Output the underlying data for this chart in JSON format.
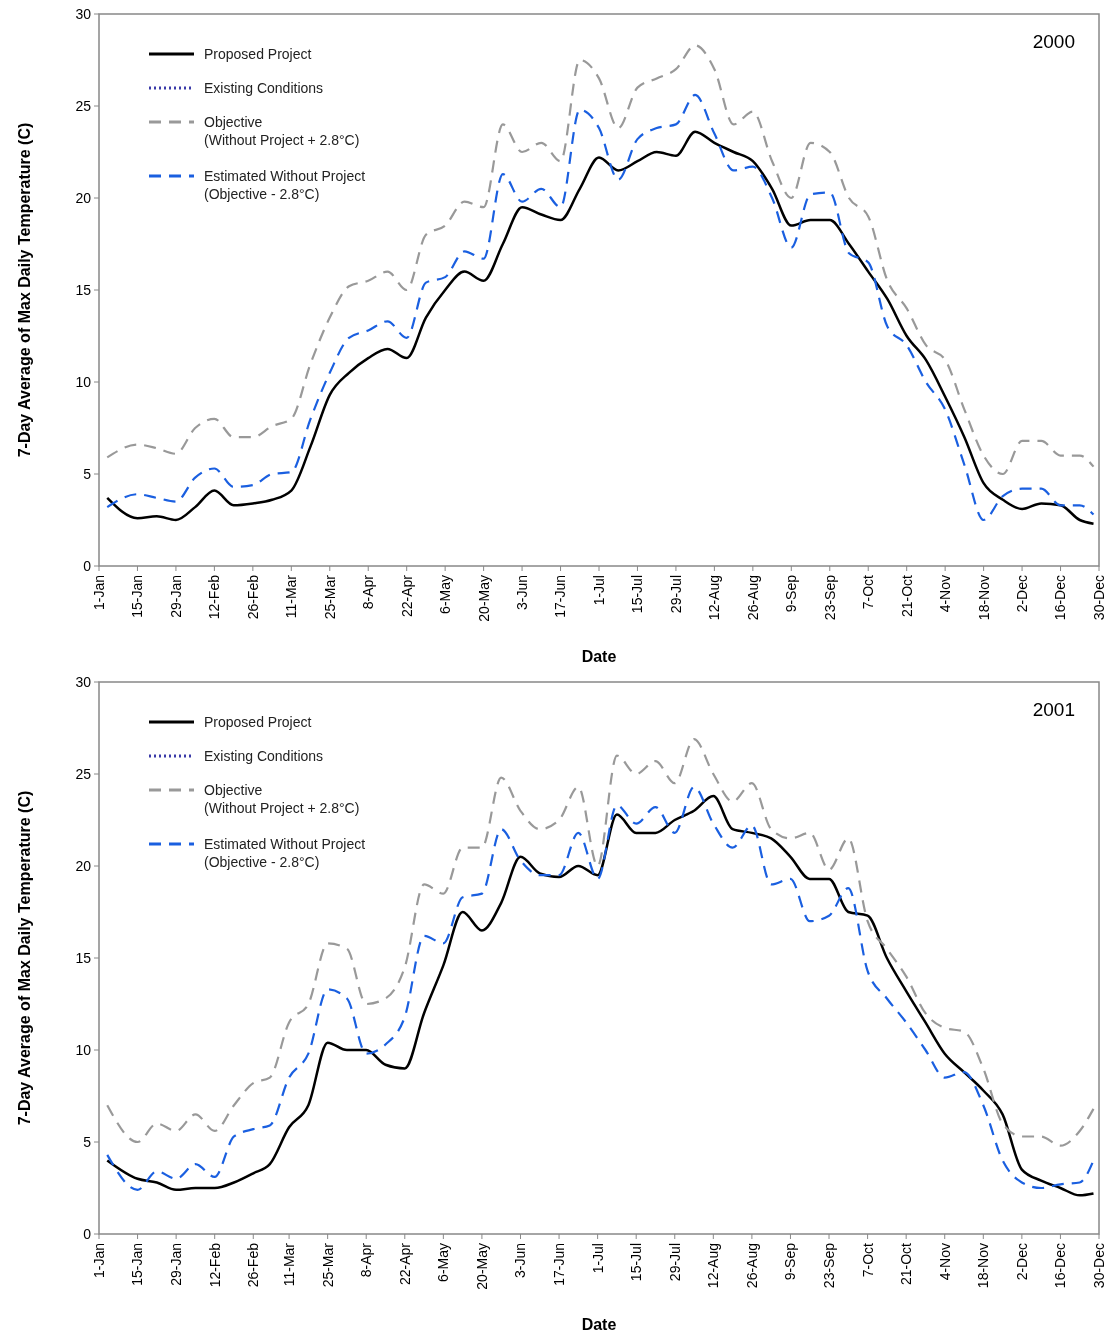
{
  "chart_data": [
    {
      "type": "line",
      "title": "2000",
      "xlabel": "Date",
      "ylabel": "7-Day Average of Max Daily Temperature (C)",
      "legend": "top left",
      "ylim": [
        0,
        30
      ],
      "yticks": [
        0,
        5,
        10,
        15,
        20,
        25,
        30
      ],
      "xlim": [
        "2000-01-01",
        "2000-12-30"
      ],
      "xticks": [
        {
          "value": "2000-01-01",
          "label": "1-Jan"
        },
        {
          "value": "2000-01-15",
          "label": "15-Jan"
        },
        {
          "value": "2000-01-29",
          "label": "29-Jan"
        },
        {
          "value": "2000-02-12",
          "label": "12-Feb"
        },
        {
          "value": "2000-02-26",
          "label": "26-Feb"
        },
        {
          "value": "2000-03-11",
          "label": "11-Mar"
        },
        {
          "value": "2000-03-25",
          "label": "25-Mar"
        },
        {
          "value": "2000-04-08",
          "label": "8-Apr"
        },
        {
          "value": "2000-04-22",
          "label": "22-Apr"
        },
        {
          "value": "2000-05-06",
          "label": "6-May"
        },
        {
          "value": "2000-05-20",
          "label": "20-May"
        },
        {
          "value": "2000-06-03",
          "label": "3-Jun"
        },
        {
          "value": "2000-06-17",
          "label": "17-Jun"
        },
        {
          "value": "2000-07-01",
          "label": "1-Jul"
        },
        {
          "value": "2000-07-15",
          "label": "15-Jul"
        },
        {
          "value": "2000-07-29",
          "label": "29-Jul"
        },
        {
          "value": "2000-08-12",
          "label": "12-Aug"
        },
        {
          "value": "2000-08-26",
          "label": "26-Aug"
        },
        {
          "value": "2000-09-09",
          "label": "9-Sep"
        },
        {
          "value": "2000-09-23",
          "label": "23-Sep"
        },
        {
          "value": "2000-10-07",
          "label": "7-Oct"
        },
        {
          "value": "2000-10-21",
          "label": "21-Oct"
        },
        {
          "value": "2000-11-04",
          "label": "4-Nov"
        },
        {
          "value": "2000-11-18",
          "label": "18-Nov"
        },
        {
          "value": "2000-12-02",
          "label": "2-Dec"
        },
        {
          "value": "2000-12-16",
          "label": "16-Dec"
        },
        {
          "value": "2000-12-30",
          "label": "30-Dec"
        }
      ],
      "x": [
        "2000-01-04",
        "2000-01-15",
        "2000-01-22",
        "2000-01-29",
        "2000-02-05",
        "2000-02-12",
        "2000-02-19",
        "2000-02-26",
        "2000-03-04",
        "2000-03-11",
        "2000-03-18",
        "2000-03-25",
        "2000-04-01",
        "2000-04-08",
        "2000-04-15",
        "2000-04-22",
        "2000-04-29",
        "2000-05-06",
        "2000-05-13",
        "2000-05-20",
        "2000-05-27",
        "2000-06-03",
        "2000-06-10",
        "2000-06-17",
        "2000-06-24",
        "2000-07-01",
        "2000-07-08",
        "2000-07-15",
        "2000-07-22",
        "2000-07-29",
        "2000-08-05",
        "2000-08-12",
        "2000-08-19",
        "2000-08-26",
        "2000-09-02",
        "2000-09-09",
        "2000-09-16",
        "2000-09-23",
        "2000-09-30",
        "2000-10-07",
        "2000-10-14",
        "2000-10-21",
        "2000-10-28",
        "2000-11-04",
        "2000-11-11",
        "2000-11-18",
        "2000-11-25",
        "2000-12-02",
        "2000-12-09",
        "2000-12-16",
        "2000-12-23",
        "2000-12-28"
      ],
      "series": [
        {
          "name": "Proposed Project",
          "color": "#000000",
          "line_style": "solid",
          "values": [
            3.7,
            2.6,
            2.7,
            2.5,
            3.2,
            4.1,
            3.3,
            3.4,
            3.6,
            4.1,
            6.5,
            9.3,
            10.5,
            11.3,
            11.8,
            11.3,
            13.5,
            15.0,
            16.0,
            15.5,
            17.5,
            19.5,
            19.1,
            18.8,
            20.5,
            22.2,
            21.5,
            22.0,
            22.5,
            22.3,
            23.6,
            23.0,
            22.5,
            22.0,
            20.5,
            18.5,
            18.8,
            18.8,
            17.5,
            16.0,
            14.5,
            12.5,
            11.2,
            9.2,
            7.0,
            4.5,
            3.6,
            3.1,
            3.4,
            3.3,
            2.5,
            2.3
          ]
        },
        {
          "name": "Existing Conditions",
          "color": "#3a3aa8",
          "line_style": "dotted",
          "values": [
            null,
            null,
            null,
            null,
            null,
            null,
            null,
            null,
            null,
            null,
            null,
            null,
            null,
            null,
            null,
            null,
            null,
            null,
            null,
            null,
            null,
            null,
            null,
            null,
            null,
            null,
            null,
            null,
            null,
            null,
            null,
            null,
            null,
            null,
            null,
            null,
            null,
            null,
            null,
            null,
            null,
            null,
            null,
            null,
            null,
            null,
            null,
            null,
            null,
            null,
            null,
            null
          ]
        },
        {
          "name": "Objective\n(Without Project + 2.8°C)",
          "color": "#999999",
          "line_style": "dashed",
          "values": [
            5.9,
            6.6,
            6.4,
            6.1,
            7.5,
            8.0,
            7.0,
            7.0,
            7.6,
            8.0,
            11.0,
            13.5,
            15.2,
            15.5,
            16.0,
            15.0,
            18.0,
            18.5,
            19.8,
            19.5,
            24.0,
            22.5,
            23.0,
            22.0,
            27.5,
            26.5,
            23.8,
            26.0,
            26.5,
            27.0,
            28.3,
            27.0,
            24.0,
            24.7,
            22.0,
            20.0,
            23.0,
            22.5,
            20.0,
            19.0,
            15.5,
            14.0,
            12.0,
            11.2,
            8.5,
            6.0,
            5.0,
            6.8,
            6.8,
            6.0,
            6.0,
            5.4
          ]
        },
        {
          "name": "Estimated Without Project\n(Objective - 2.8°C)",
          "color": "#1a5fe0",
          "line_style": "dashed",
          "values": [
            3.2,
            3.9,
            3.7,
            3.5,
            4.8,
            5.3,
            4.3,
            4.4,
            5.0,
            5.1,
            8.0,
            10.5,
            12.4,
            12.8,
            13.3,
            12.4,
            15.4,
            15.7,
            17.1,
            16.7,
            21.3,
            19.8,
            20.5,
            19.5,
            24.8,
            23.8,
            21.0,
            23.2,
            23.8,
            24.0,
            25.6,
            23.5,
            21.5,
            21.7,
            20.0,
            17.3,
            20.2,
            20.3,
            17.0,
            16.5,
            13.0,
            12.0,
            10.0,
            8.5,
            5.5,
            2.5,
            3.8,
            4.2,
            4.2,
            3.3,
            3.3,
            2.8
          ]
        }
      ]
    },
    {
      "type": "line",
      "title": "2001",
      "xlabel": "Date",
      "ylabel": "7-Day Average of Max Daily Temperature (C)",
      "legend": "top left",
      "ylim": [
        0,
        30
      ],
      "yticks": [
        0,
        5,
        10,
        15,
        20,
        25,
        30
      ],
      "xlim": [
        "--01-01",
        "--12-30"
      ],
      "xticks": [
        {
          "value": "--01-01",
          "label": "1-Jan"
        },
        {
          "value": "--01-15",
          "label": "15-Jan"
        },
        {
          "value": "--01-29",
          "label": "29-Jan"
        },
        {
          "value": "--02-12",
          "label": "12-Feb"
        },
        {
          "value": "--02-26",
          "label": "26-Feb"
        },
        {
          "value": "--03-11",
          "label": "11-Mar"
        },
        {
          "value": "--03-25",
          "label": "25-Mar"
        },
        {
          "value": "--04-08",
          "label": "8-Apr"
        },
        {
          "value": "--04-22",
          "label": "22-Apr"
        },
        {
          "value": "--05-06",
          "label": "6-May"
        },
        {
          "value": "--05-20",
          "label": "20-May"
        },
        {
          "value": "--06-03",
          "label": "3-Jun"
        },
        {
          "value": "--06-17",
          "label": "17-Jun"
        },
        {
          "value": "--07-01",
          "label": "1-Jul"
        },
        {
          "value": "--07-15",
          "label": "15-Jul"
        },
        {
          "value": "--07-29",
          "label": "29-Jul"
        },
        {
          "value": "--08-12",
          "label": "12-Aug"
        },
        {
          "value": "--08-26",
          "label": "26-Aug"
        },
        {
          "value": "--09-09",
          "label": "9-Sep"
        },
        {
          "value": "--09-23",
          "label": "23-Sep"
        },
        {
          "value": "--10-07",
          "label": "7-Oct"
        },
        {
          "value": "--10-21",
          "label": "21-Oct"
        },
        {
          "value": "--11-04",
          "label": "4-Nov"
        },
        {
          "value": "--11-18",
          "label": "18-Nov"
        },
        {
          "value": "--12-02",
          "label": "2-Dec"
        },
        {
          "value": "--12-16",
          "label": "16-Dec"
        },
        {
          "value": "--12-30",
          "label": "30-Dec"
        }
      ],
      "x": [
        "--01-04",
        "--01-15",
        "--01-22",
        "--01-29",
        "--02-05",
        "--02-12",
        "--02-19",
        "--02-26",
        "--03-04",
        "--03-11",
        "--03-18",
        "--03-25",
        "--04-01",
        "--04-08",
        "--04-15",
        "--04-22",
        "--04-29",
        "--05-06",
        "--05-13",
        "--05-20",
        "--05-27",
        "--06-03",
        "--06-10",
        "--06-17",
        "--06-24",
        "--07-01",
        "--07-08",
        "--07-15",
        "--07-22",
        "--07-29",
        "--08-05",
        "--08-12",
        "--08-19",
        "--08-26",
        "--09-02",
        "--09-09",
        "--09-16",
        "--09-23",
        "--09-30",
        "--10-07",
        "--10-14",
        "--10-21",
        "--10-28",
        "--11-04",
        "--11-11",
        "--11-18",
        "--11-25",
        "--12-02",
        "--12-09",
        "--12-16",
        "--12-23",
        "--12-28"
      ],
      "series": [
        {
          "name": "Proposed Project",
          "color": "#000000",
          "line_style": "solid",
          "values": [
            4.0,
            3.0,
            2.8,
            2.4,
            2.5,
            2.5,
            2.8,
            3.3,
            3.8,
            5.8,
            7.0,
            10.4,
            10.0,
            10.0,
            9.2,
            9.0,
            12.0,
            14.6,
            17.5,
            16.5,
            18.0,
            20.5,
            19.6,
            19.4,
            20.0,
            19.5,
            22.8,
            21.8,
            21.8,
            22.5,
            23.0,
            23.8,
            22.0,
            21.8,
            21.5,
            20.5,
            19.3,
            19.3,
            17.5,
            17.3,
            15.0,
            13.2,
            11.5,
            9.8,
            8.8,
            7.8,
            6.5,
            3.5,
            2.9,
            2.5,
            2.1,
            2.2
          ]
        },
        {
          "name": "Existing Conditions",
          "color": "#3a3aa8",
          "line_style": "dotted",
          "values": [
            null,
            null,
            null,
            null,
            null,
            null,
            null,
            null,
            null,
            null,
            null,
            null,
            null,
            null,
            null,
            null,
            null,
            null,
            null,
            null,
            null,
            null,
            null,
            null,
            null,
            null,
            null,
            null,
            null,
            null,
            null,
            null,
            null,
            null,
            null,
            null,
            null,
            null,
            null,
            null,
            null,
            null,
            null,
            null,
            null,
            null,
            null,
            null,
            null,
            null,
            null,
            null
          ]
        },
        {
          "name": "Objective\n(Without Project + 2.8°C)",
          "color": "#999999",
          "line_style": "dashed",
          "values": [
            7.0,
            5.0,
            6.0,
            5.6,
            6.5,
            5.6,
            7.0,
            8.2,
            8.5,
            11.5,
            12.5,
            15.8,
            15.5,
            12.5,
            12.8,
            14.5,
            19.0,
            18.5,
            21.0,
            21.0,
            24.8,
            23.0,
            22.0,
            22.5,
            24.3,
            20.0,
            26.0,
            25.0,
            25.7,
            24.5,
            26.9,
            25.0,
            23.5,
            24.5,
            22.0,
            21.5,
            21.8,
            19.8,
            21.5,
            17.0,
            15.5,
            14.0,
            12.0,
            11.2,
            11.0,
            9.0,
            6.0,
            5.3,
            5.3,
            4.8,
            5.6,
            6.8
          ]
        },
        {
          "name": "Estimated Without Project\n(Objective - 2.8°C)",
          "color": "#1a5fe0",
          "line_style": "dashed",
          "values": [
            4.3,
            2.4,
            3.4,
            3.0,
            3.8,
            3.1,
            5.3,
            5.7,
            5.9,
            8.5,
            9.8,
            13.3,
            12.8,
            9.8,
            10.3,
            11.8,
            16.2,
            15.8,
            18.3,
            18.5,
            22.0,
            20.3,
            19.5,
            19.5,
            21.8,
            19.3,
            23.3,
            22.3,
            23.2,
            21.8,
            24.3,
            22.3,
            21.0,
            22.2,
            19.0,
            19.3,
            17.0,
            17.3,
            18.8,
            14.3,
            12.8,
            11.5,
            10.0,
            8.5,
            8.8,
            7.0,
            4.0,
            2.8,
            2.5,
            2.7,
            2.8,
            4.0
          ]
        }
      ]
    }
  ]
}
